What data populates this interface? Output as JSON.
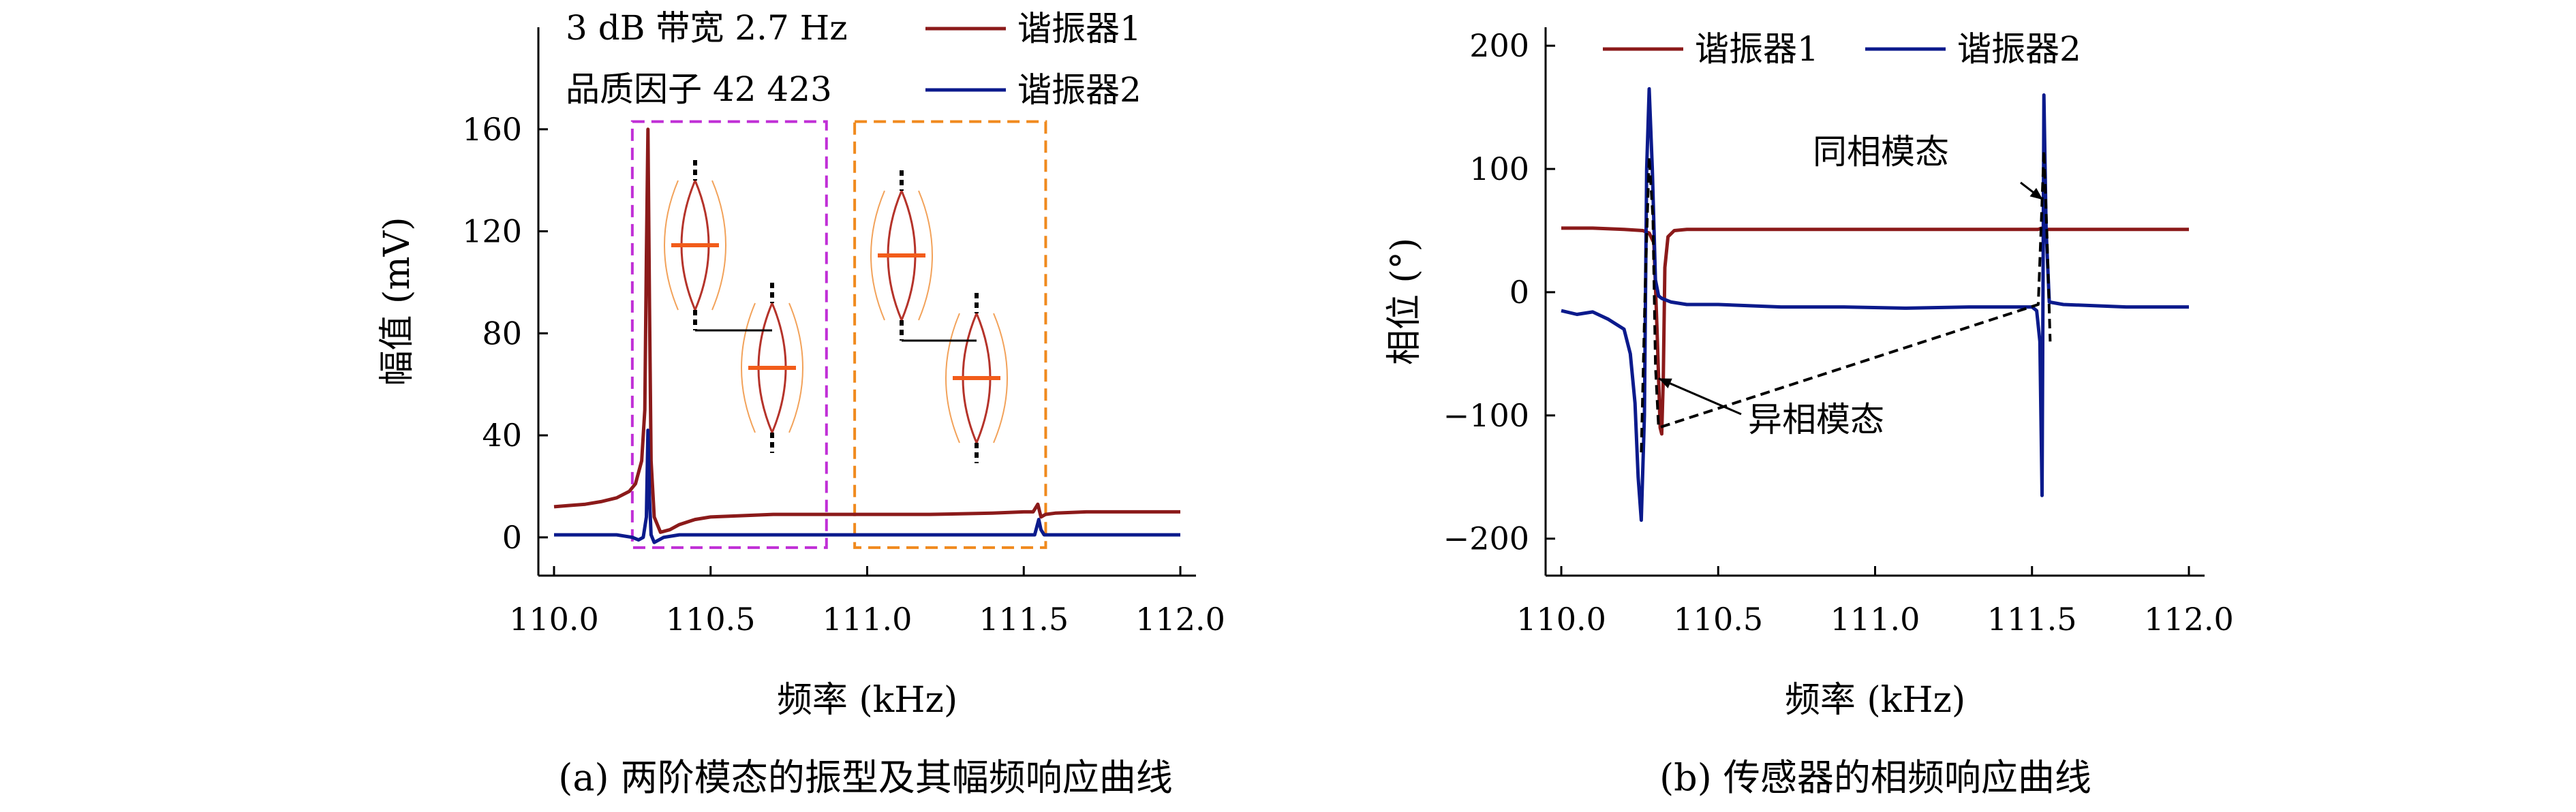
{
  "colors": {
    "resonator1": "#8b1a1a",
    "resonator2": "#0b1a8c",
    "box_left": "#c02fd6",
    "box_right": "#f08a1e",
    "mode_shape_dark": "#b5332a",
    "mode_shape_light": "#f2a25a",
    "electrode": "#f25c1a"
  },
  "chart_data": [
    {
      "type": "line",
      "panel": "a",
      "caption": "(a) 两阶模态的振型及其幅频响应曲线",
      "xlabel": "频率 (kHz)",
      "ylabel": "幅值 (mV)",
      "xlim": [
        109.95,
        112.05
      ],
      "ylim": [
        -15,
        200
      ],
      "xticks": [
        110.0,
        110.5,
        111.0,
        111.5,
        112.0
      ],
      "xtick_labels": [
        "110.0",
        "110.5",
        "111.0",
        "111.5",
        "112.0"
      ],
      "yticks": [
        0,
        40,
        80,
        120,
        160
      ],
      "ytick_labels": [
        "0",
        "40",
        "80",
        "120",
        "160"
      ],
      "grid": false,
      "legend_position": "top-right",
      "annotations": [
        {
          "text": "3 dB 带宽 2.7 Hz"
        },
        {
          "text": "品质因子 42 423"
        }
      ],
      "highlight_boxes": [
        {
          "label": "in-phase-region",
          "x_range": [
            110.25,
            110.87
          ],
          "y_range": [
            -4,
            163
          ],
          "color": "box_left"
        },
        {
          "label": "anti-phase-region",
          "x_range": [
            110.96,
            111.57
          ],
          "y_range": [
            -4,
            163
          ],
          "color": "box_right"
        }
      ],
      "series": [
        {
          "name": "谐振器1",
          "color": "resonator1",
          "x": [
            110.0,
            110.05,
            110.1,
            110.15,
            110.2,
            110.24,
            110.26,
            110.28,
            110.29,
            110.295,
            110.3,
            110.305,
            110.31,
            110.32,
            110.34,
            110.37,
            110.4,
            110.45,
            110.5,
            110.6,
            110.7,
            110.8,
            110.9,
            111.0,
            111.2,
            111.4,
            111.5,
            111.53,
            111.545,
            111.555,
            111.57,
            111.6,
            111.7,
            111.8,
            112.0
          ],
          "y": [
            12,
            12.5,
            13,
            14,
            15.5,
            18,
            21,
            30,
            50,
            110,
            160,
            90,
            30,
            8,
            2,
            3,
            5,
            7,
            8,
            8.5,
            9,
            9,
            9,
            9,
            9,
            9.5,
            10,
            10,
            13,
            8,
            9,
            9.5,
            10,
            10,
            10
          ]
        },
        {
          "name": "谐振器2",
          "color": "resonator2",
          "x": [
            110.0,
            110.1,
            110.2,
            110.25,
            110.27,
            110.285,
            110.295,
            110.3,
            110.305,
            110.31,
            110.32,
            110.35,
            110.4,
            110.6,
            111.0,
            111.5,
            111.535,
            111.548,
            111.555,
            111.565,
            111.6,
            112.0
          ],
          "y": [
            1,
            1,
            1,
            0,
            -1,
            0,
            8,
            42,
            15,
            1,
            -2,
            0,
            1,
            1,
            1,
            1,
            1,
            7,
            3,
            1,
            1,
            1
          ]
        }
      ]
    },
    {
      "type": "line",
      "panel": "b",
      "caption": "(b) 传感器的相频响应曲线",
      "xlabel": "频率 (kHz)",
      "ylabel": "相位 (°)",
      "xlim": [
        109.95,
        112.05
      ],
      "ylim": [
        -230,
        215
      ],
      "xticks": [
        110.0,
        110.5,
        111.0,
        111.5,
        112.0
      ],
      "xtick_labels": [
        "110.0",
        "110.5",
        "111.0",
        "111.5",
        "112.0"
      ],
      "yticks": [
        -200,
        -100,
        0,
        100,
        200
      ],
      "ytick_labels": [
        "−200",
        "−100",
        "0",
        "100",
        "200"
      ],
      "grid": false,
      "legend_position": "top",
      "annotations": [
        {
          "text": "同相模态",
          "arrow_to": [
            111.535,
            75
          ]
        },
        {
          "text": "异相模态",
          "arrow_to": [
            110.31,
            -70
          ]
        }
      ],
      "series": [
        {
          "name": "谐振器1",
          "color": "resonator1",
          "x": [
            110.0,
            110.1,
            110.2,
            110.26,
            110.28,
            110.295,
            110.305,
            110.315,
            110.32,
            110.325,
            110.33,
            110.34,
            110.36,
            110.4,
            110.6,
            111.0,
            111.4,
            111.52,
            111.53,
            111.54,
            111.55,
            111.6,
            112.0
          ],
          "y": [
            52,
            52,
            51,
            50,
            48,
            40,
            -30,
            -110,
            -115,
            -70,
            20,
            45,
            50,
            51,
            51,
            51,
            51,
            51,
            52,
            50,
            51,
            51,
            51
          ]
        },
        {
          "name": "谐振器2",
          "color": "resonator2",
          "x": [
            110.0,
            110.05,
            110.1,
            110.15,
            110.2,
            110.22,
            110.235,
            110.245,
            110.255,
            110.265,
            110.272,
            110.28,
            110.29,
            110.3,
            110.31,
            110.32,
            110.35,
            110.4,
            110.5,
            110.7,
            110.9,
            111.1,
            111.3,
            111.45,
            111.5,
            111.515,
            111.525,
            111.532,
            111.538,
            111.545,
            111.555,
            111.6,
            111.8,
            112.0
          ],
          "y": [
            -15,
            -18,
            -16,
            -22,
            -30,
            -50,
            -90,
            -150,
            -185,
            -100,
            100,
            165,
            100,
            10,
            -3,
            -5,
            -8,
            -10,
            -10,
            -12,
            -12,
            -13,
            -12,
            -12,
            -12,
            -15,
            -40,
            -165,
            160,
            50,
            -8,
            -10,
            -12,
            -12
          ]
        },
        {
          "name": "",
          "color": "#000000",
          "dashed": true,
          "x": [
            110.255,
            110.268,
            110.28,
            110.292,
            110.3,
            110.31,
            111.52,
            111.53,
            111.538,
            111.548,
            111.558
          ],
          "y": [
            -130,
            10,
            110,
            60,
            -60,
            -110,
            -10,
            60,
            115,
            45,
            -40
          ]
        }
      ]
    }
  ]
}
